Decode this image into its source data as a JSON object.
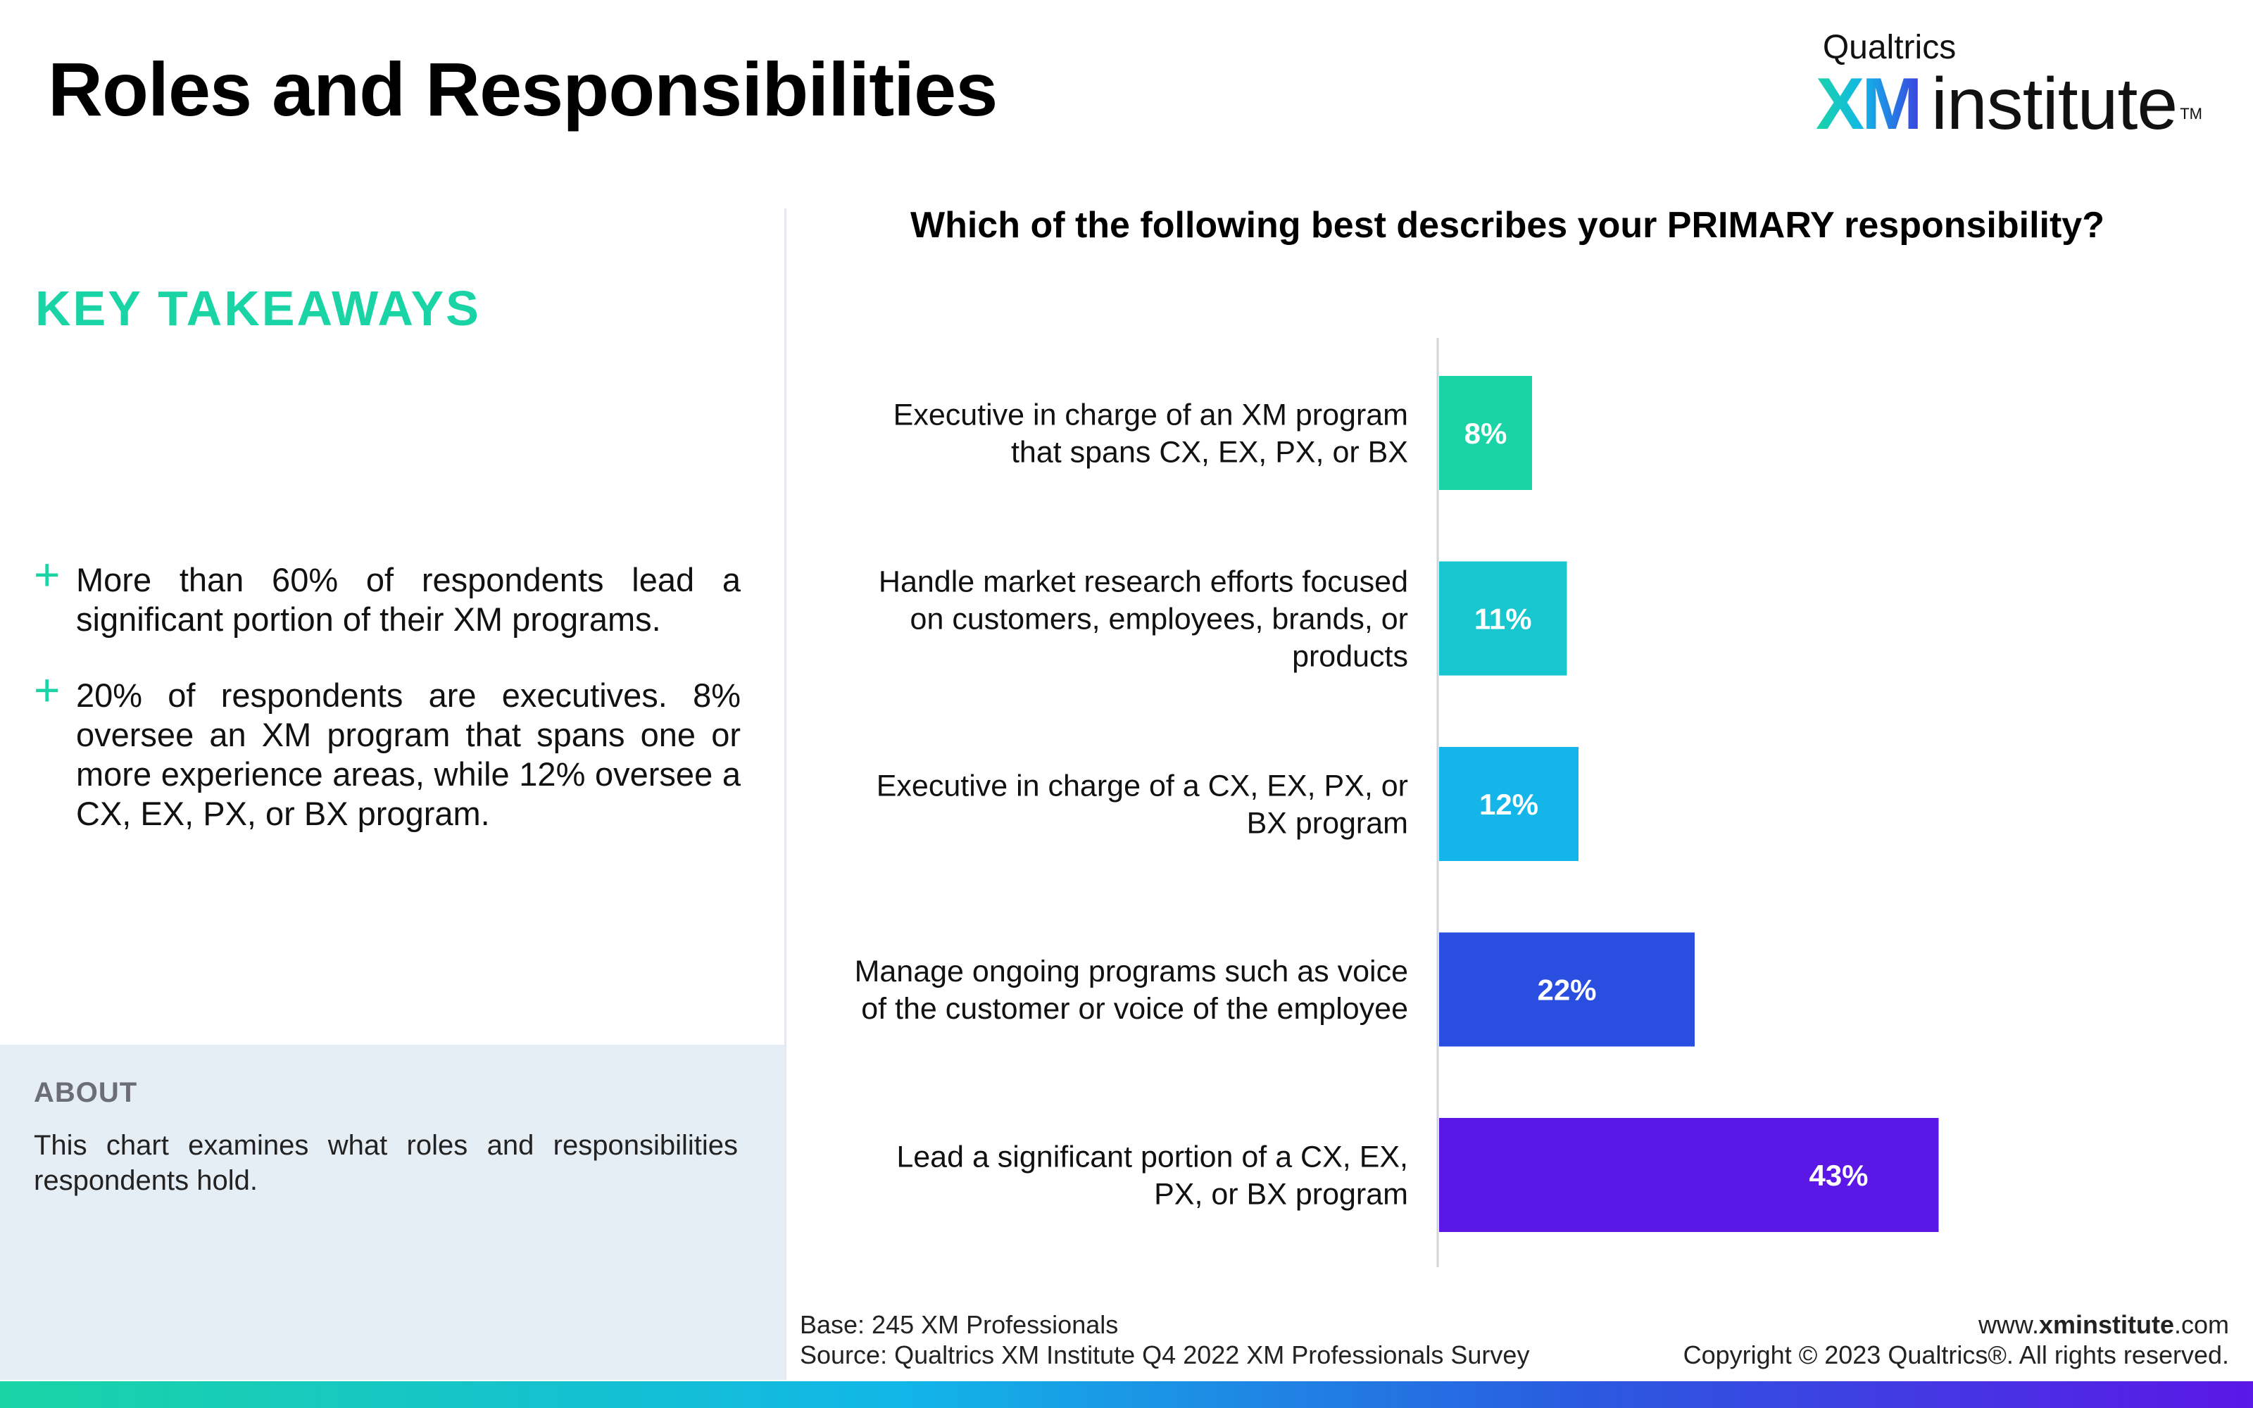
{
  "header": {
    "title": "Roles and Responsibilities",
    "brand_top": "Qualtrics",
    "brand_xm": "XM",
    "brand_institute": "institute",
    "brand_tm": "TM"
  },
  "takeaways": {
    "title": "KEY TAKEAWAYS",
    "items": [
      "More than 60% of respondents lead a significant portion of their XM programs.",
      "20% of respondents are executives. 8% oversee an XM program that spans one or more experience areas, while 12% oversee a CX, EX, PX, or BX program."
    ]
  },
  "about": {
    "title": "ABOUT",
    "text": "This chart examines what roles and responsibilities respondents hold."
  },
  "chart_data": {
    "type": "bar",
    "orientation": "horizontal",
    "title": "Which of the following best describes your PRIMARY responsibility?",
    "categories": [
      [
        "Executive in charge of an XM program",
        "that spans CX, EX, PX, or BX"
      ],
      [
        "Handle market research efforts focused",
        "on customers, employees, brands, or",
        "products"
      ],
      [
        "Executive in charge of a CX, EX, PX, or",
        "BX program"
      ],
      [
        "Manage ongoing programs such as voice",
        "of the customer or voice of the employee"
      ],
      [
        "Lead a significant portion of a CX, EX,",
        "PX, or BX program"
      ]
    ],
    "values": [
      8,
      11,
      12,
      22,
      43
    ],
    "data_labels": [
      "8%",
      "11%",
      "12%",
      "22%",
      "43%"
    ],
    "colors": [
      "#1ad4a6",
      "#17c6cf",
      "#14b6ea",
      "#2a4fe0",
      "#5b17e6"
    ],
    "xlim": [
      0,
      50
    ],
    "grid": false,
    "legend": "none"
  },
  "footer": {
    "base": "Base: 245 XM Professionals",
    "source": "Source: Qualtrics XM Institute Q4 2022 XM Professionals Survey",
    "url_prefix": "www.",
    "url_bold": "xminstitute",
    "url_suffix": ".com",
    "copyright": "Copyright © 2023 Qualtrics®. All rights reserved."
  }
}
